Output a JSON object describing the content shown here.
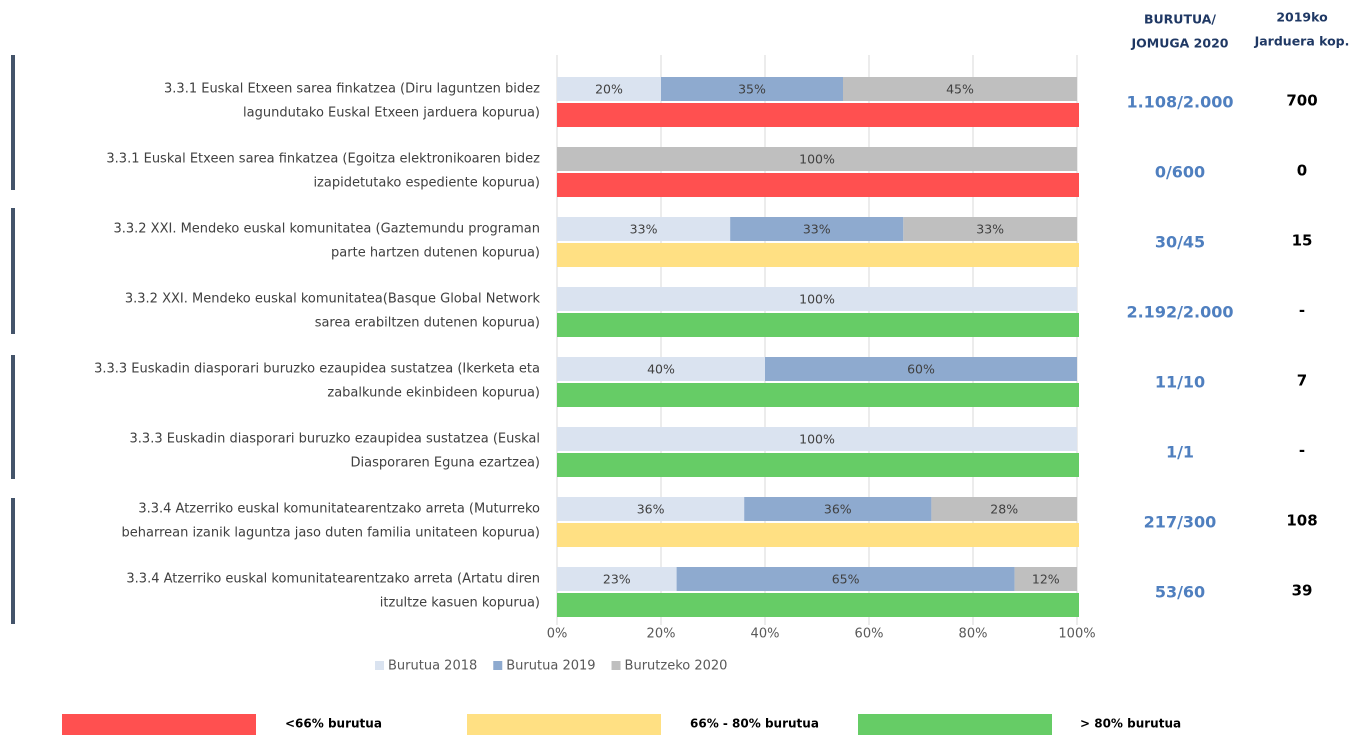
{
  "chart_data": {
    "type": "stacked-bar-horizontal",
    "categories": [
      [
        "3.3.1 Euskal Etxeen sarea finkatzea (Diru laguntzen bidez",
        "lagundutako Euskal Etxeen jarduera kopurua)"
      ],
      [
        "3.3.1 Euskal Etxeen sarea finkatzea (Egoitza elektronikoaren bidez",
        "izapidetutako espediente kopurua)"
      ],
      [
        "3.3.2 XXI. Mendeko euskal komunitatea (Gaztemundu programan",
        "parte hartzen dutenen kopurua)"
      ],
      [
        "3.3.2 XXI. Mendeko euskal komunitatea(Basque Global Network",
        "sarea erabiltzen dutenen kopurua)"
      ],
      [
        "3.3.3 Euskadin diasporari buruzko ezaupidea sustatzea (Ikerketa eta",
        "zabalkunde ekinbideen kopurua)"
      ],
      [
        "3.3.3 Euskadin diasporari buruzko ezaupidea sustatzea (Euskal",
        "Diasporaren Eguna ezartzea)"
      ],
      [
        "3.3.4 Atzerriko euskal komunitatearentzako arreta (Muturreko",
        "beharrean izanik laguntza jaso duten familia unitateen kopurua)"
      ],
      [
        "3.3.4 Atzerriko euskal komunitatearentzako arreta (Artatu diren",
        "itzultze kasuen kopurua)"
      ]
    ],
    "series": [
      {
        "name": "Burutua 2018",
        "color": "#dae3f0",
        "values": [
          20,
          0,
          33.3,
          100,
          40,
          100,
          36,
          23
        ],
        "value_labels": [
          "20%",
          null,
          "33%",
          "100%",
          "40%",
          "100%",
          "36%",
          "23%"
        ]
      },
      {
        "name": "Burutua 2019",
        "color": "#8eaacf",
        "values": [
          35,
          0,
          33.3,
          0,
          60,
          0,
          36,
          65
        ],
        "value_labels": [
          "35%",
          null,
          "33%",
          null,
          "60%",
          null,
          "36%",
          "65%"
        ]
      },
      {
        "name": "Burutzeko 2020",
        "color": "#bfbfbf",
        "values": [
          45,
          100,
          33.4,
          0,
          0,
          0,
          28,
          12
        ],
        "value_labels": [
          "45%",
          "100%",
          "33%",
          null,
          null,
          null,
          "28%",
          "12%"
        ]
      }
    ],
    "status": [
      0,
      0,
      1,
      2,
      2,
      2,
      1,
      2
    ],
    "status_legend": [
      {
        "label": "<66% burutua",
        "color": "#ff5050"
      },
      {
        "label": "66% - 80% burutua",
        "color": "#ffe083"
      },
      {
        "label": "> 80% burutua",
        "color": "#66cc66"
      }
    ],
    "ratio_header": [
      "BURUTUA/",
      "JOMUGA 2020"
    ],
    "ratios": [
      "1.108/2.000",
      "0/600",
      "30/45",
      "2.192/2.000",
      "11/10",
      "1/1",
      "217/300",
      "53/60"
    ],
    "count_header": [
      "2019ko",
      "Jarduera kop."
    ],
    "counts": [
      "700",
      "0",
      "15",
      "-",
      "7",
      "-",
      "108",
      "39"
    ],
    "xlim": [
      0,
      100
    ],
    "xticks": [
      {
        "value": 0,
        "label": "0%"
      },
      {
        "value": 20,
        "label": "20%"
      },
      {
        "value": 40,
        "label": "40%"
      },
      {
        "value": 60,
        "label": "60%"
      },
      {
        "value": 80,
        "label": "80%"
      },
      {
        "value": 100,
        "label": "100%"
      }
    ],
    "grid": true
  }
}
